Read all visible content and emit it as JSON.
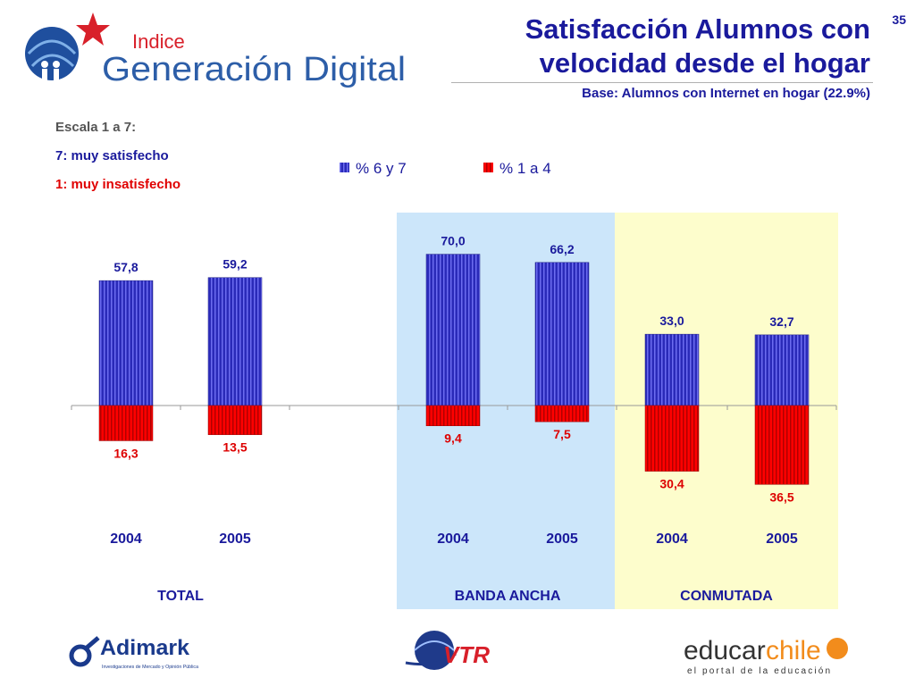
{
  "header": {
    "logo_small": "Indice",
    "logo_big": "Generación Digital",
    "title_line1": "Satisfacción Alumnos con",
    "title_line2": "velocidad desde el hogar",
    "subtitle": "Base: Alumnos con Internet en hogar (22.9%)",
    "page_number": "35"
  },
  "scale_note": {
    "line1": "Escala 1 a 7:",
    "line2": "7: muy satisfecho",
    "line3": "1: muy insatisfecho"
  },
  "footer": {
    "adimark_name": "Adimark",
    "adimark_tagline": "Investigaciones de Mercado y Opinión Pública",
    "vtr_name": "VTR",
    "educar_name_a": "educar",
    "educar_name_b": "chile",
    "educar_tagline": "el portal de la educación"
  },
  "chart_data": {
    "type": "bar",
    "legend": [
      "% 6 y 7",
      "% 1 a 4"
    ],
    "legend_position": "top",
    "groups": [
      {
        "label": "TOTAL",
        "categories": [
          "2004",
          "2005"
        ],
        "background": ""
      },
      {
        "label": "BANDA ANCHA",
        "categories": [
          "2004",
          "2005"
        ],
        "background": "#cce6fa"
      },
      {
        "label": "CONMUTADA",
        "categories": [
          "2004",
          "2005"
        ],
        "background": "#fdfdcc"
      }
    ],
    "series": [
      {
        "name": "% 6 y 7",
        "color": "#2a2ab8",
        "values": [
          57.8,
          59.2,
          70.0,
          66.2,
          33.0,
          32.7
        ],
        "labels": [
          "57,8",
          "59,2",
          "70,0",
          "66,2",
          "33,0",
          "32,7"
        ]
      },
      {
        "name": "% 1 a 4",
        "color": "#ff0000",
        "values": [
          16.3,
          13.5,
          9.4,
          7.5,
          30.4,
          36.5
        ],
        "labels": [
          "16,3",
          "13,5",
          "9,4",
          "7,5",
          "30,4",
          "36,5"
        ]
      }
    ],
    "ylim": [
      -40,
      70
    ],
    "grid": false
  }
}
